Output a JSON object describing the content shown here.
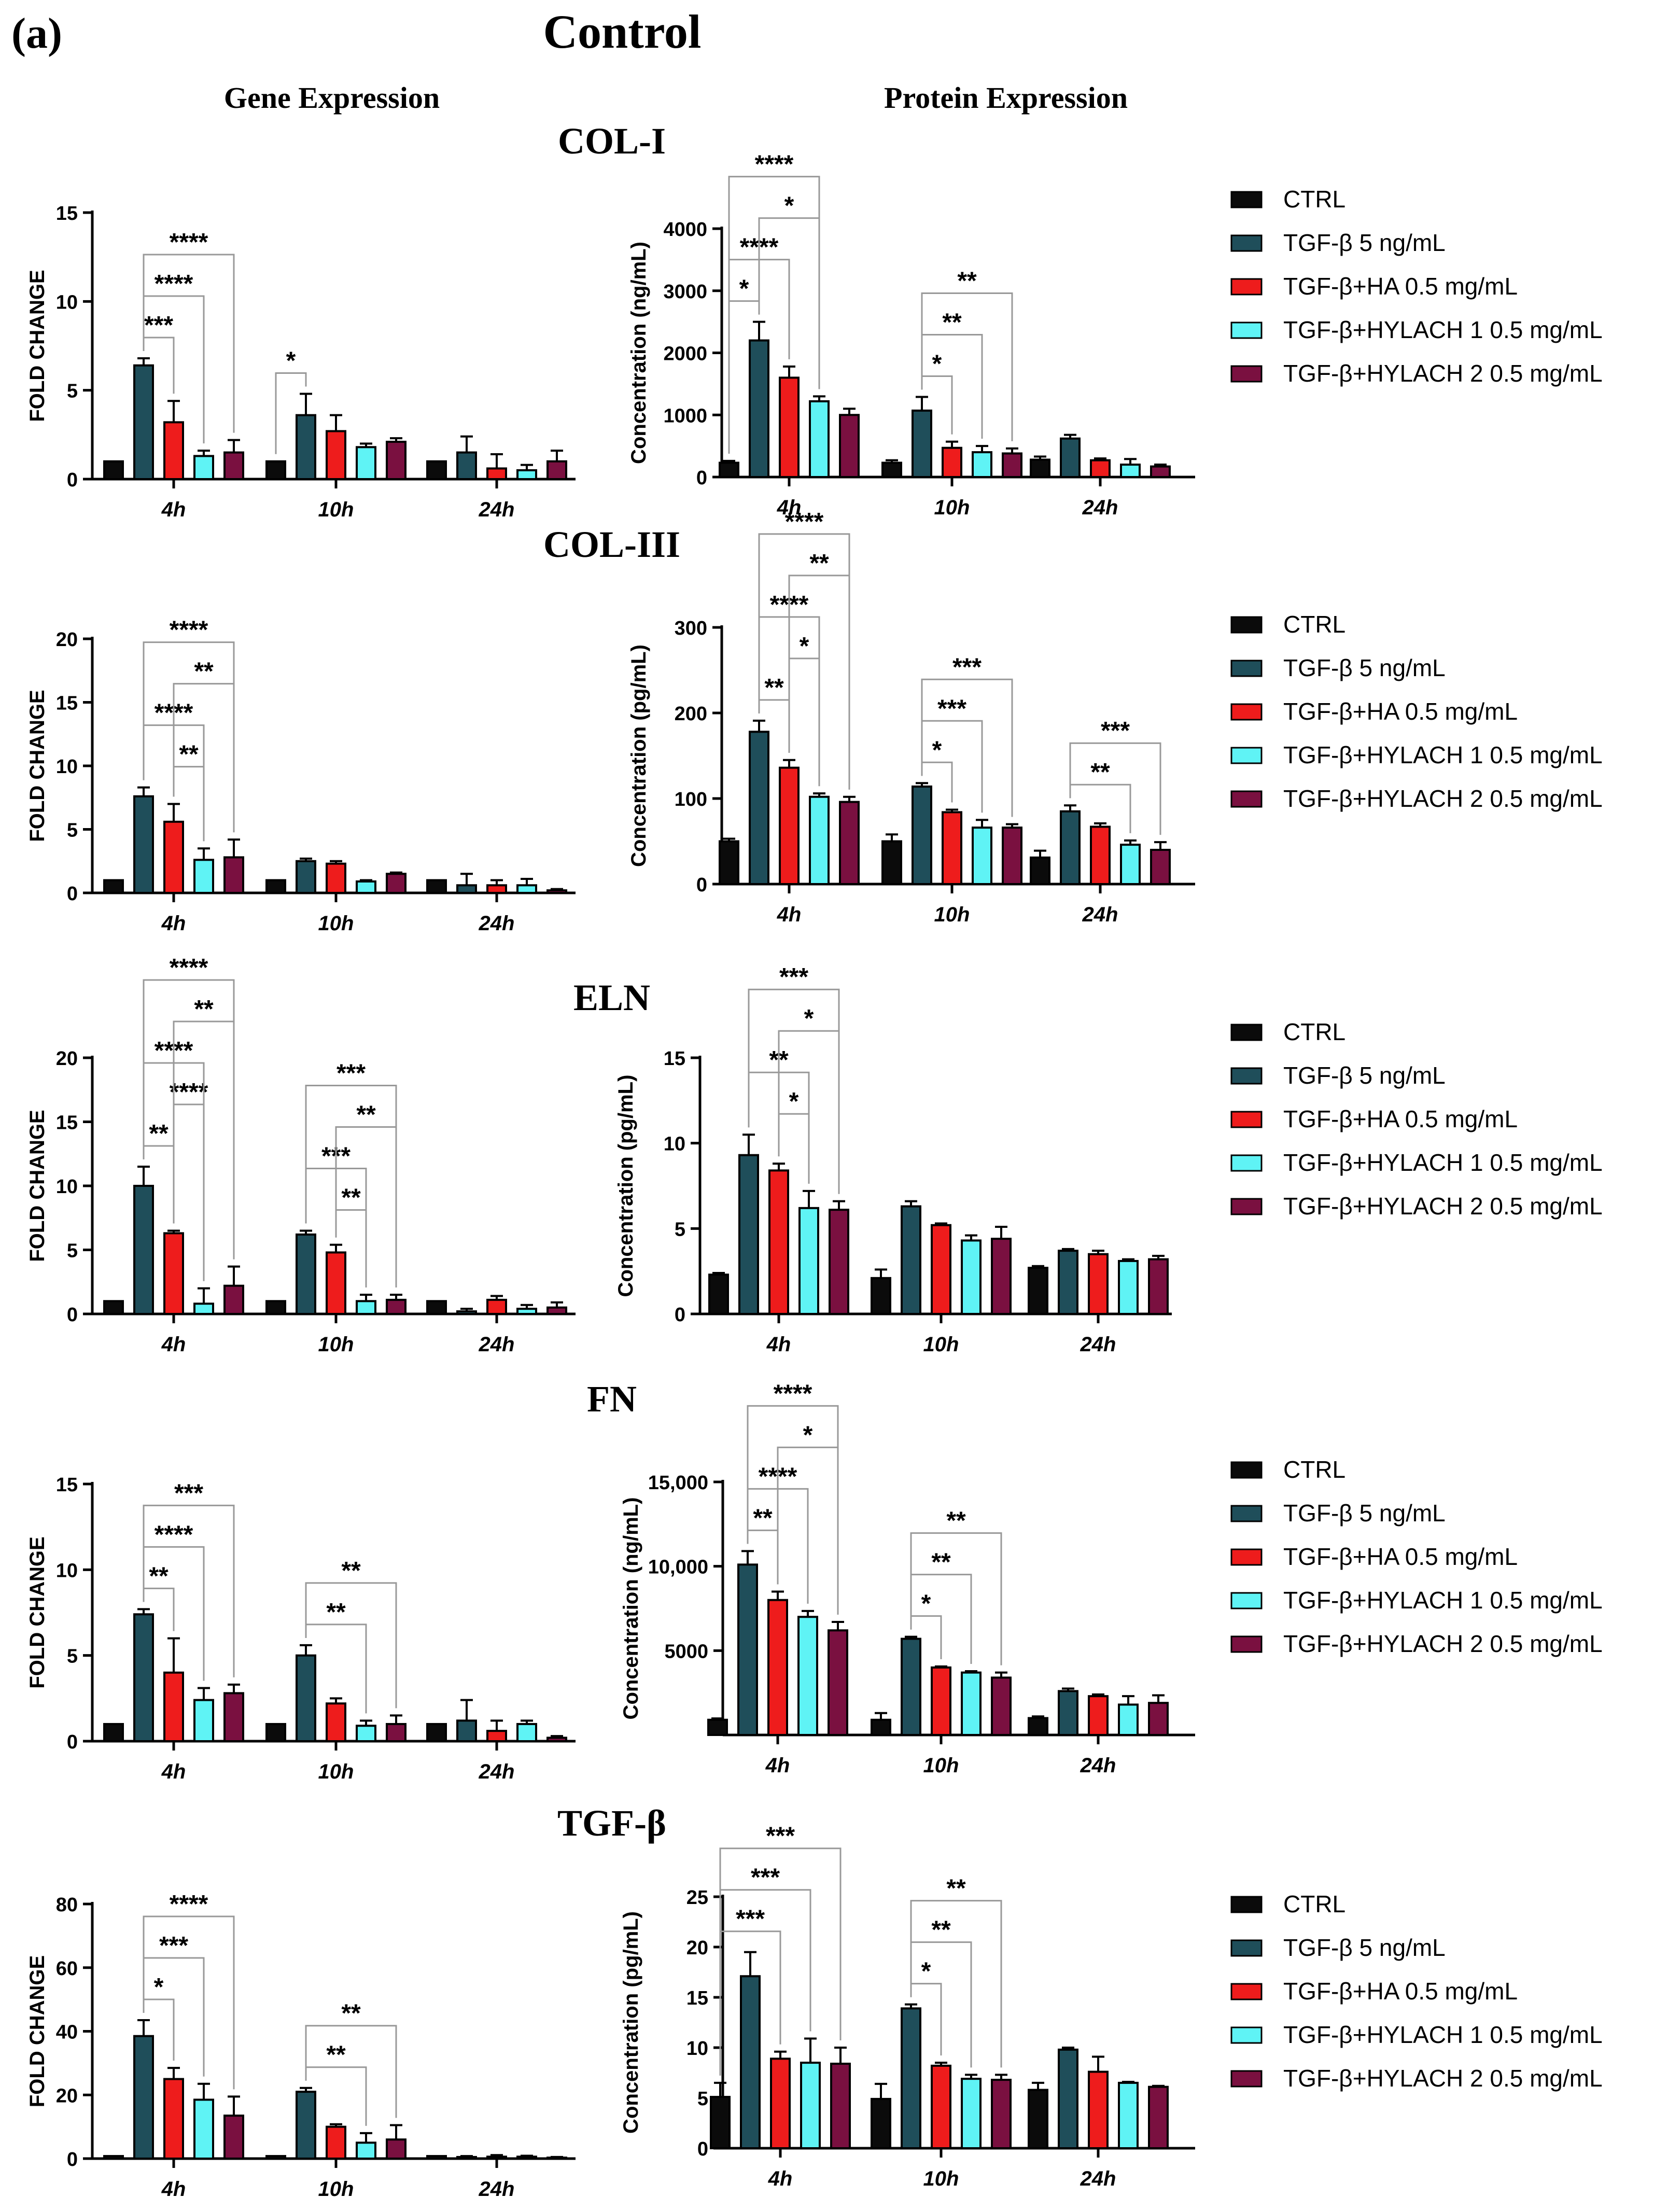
{
  "figure": {
    "panel_label": "(a)",
    "title": "Control",
    "column_gene": "Gene Expression",
    "column_protein": "Protein Expression"
  },
  "legend": [
    {
      "label": "CTRL",
      "color": "#0b0b0b"
    },
    {
      "label": "TGF-β 5 ng/mL",
      "color": "#1f4e5a"
    },
    {
      "label": "TGF-β+HA 0.5 mg/mL",
      "color": "#ee1c1c"
    },
    {
      "label": "TGF-β+HYLACH 1 0.5 mg/mL",
      "color": "#5ff3f5"
    },
    {
      "label": "TGF-β+HYLACH 2 0.5 mg/mL",
      "color": "#7a1040"
    }
  ],
  "chart_data": [
    {
      "id": "col1-gene",
      "section": "COL-I",
      "type": "bar",
      "ylabel": "FOLD CHANGE",
      "ylim": [
        0,
        15
      ],
      "yticks": [
        0,
        5,
        10,
        15
      ],
      "ytick_labels": [
        "0",
        "5",
        "10",
        "15"
      ],
      "categories": [
        "4h",
        "10h",
        "24h"
      ],
      "series_names": [
        "CTRL",
        "TGF-β 5 ng/mL",
        "TGF-β+HA 0.5 mg/mL",
        "TGF-β+HYLACH 1 0.5 mg/mL",
        "TGF-β+HYLACH 2 0.5 mg/mL"
      ],
      "values": [
        [
          1,
          6.4,
          3.2,
          1.3,
          1.5
        ],
        [
          1,
          3.6,
          2.7,
          1.8,
          2.1
        ],
        [
          1,
          1.5,
          0.6,
          0.5,
          1.0
        ]
      ],
      "errors": [
        [
          0,
          0.4,
          1.2,
          0.3,
          0.7
        ],
        [
          0,
          1.2,
          0.9,
          0.2,
          0.2
        ],
        [
          0,
          0.9,
          0.8,
          0.3,
          0.6
        ]
      ],
      "significance": [
        {
          "group": 0,
          "from": 1,
          "to": 4,
          "label": "****"
        },
        {
          "group": 0,
          "from": 1,
          "to": 3,
          "label": "****"
        },
        {
          "group": 0,
          "from": 1,
          "to": 2,
          "label": "***"
        },
        {
          "group": 1,
          "from": 0,
          "to": 1,
          "label": "*"
        }
      ]
    },
    {
      "id": "col1-protein",
      "section": "COL-I",
      "type": "bar",
      "ylabel": "Concentration (ng/mL)",
      "ylim": [
        0,
        4000
      ],
      "yticks": [
        0,
        1000,
        2000,
        3000,
        4000
      ],
      "ytick_labels": [
        "0",
        "1000",
        "2000",
        "3000",
        "4000"
      ],
      "categories": [
        "4h",
        "10h",
        "24h"
      ],
      "series_names": [
        "CTRL",
        "TGF-β 5 ng/mL",
        "TGF-β+HA 0.5 mg/mL",
        "TGF-β+HYLACH 1 0.5 mg/mL",
        "TGF-β+HYLACH 2 0.5 mg/mL"
      ],
      "values": [
        [
          230,
          2200,
          1600,
          1220,
          1000
        ],
        [
          230,
          1070,
          470,
          400,
          380
        ],
        [
          280,
          620,
          270,
          200,
          170
        ]
      ],
      "errors": [
        [
          30,
          300,
          180,
          80,
          100
        ],
        [
          40,
          220,
          100,
          100,
          80
        ],
        [
          50,
          60,
          30,
          90,
          30
        ]
      ],
      "significance": [
        {
          "group": 0,
          "from": 0,
          "to": 3,
          "label": "****"
        },
        {
          "group": 0,
          "from": 0,
          "to": 2,
          "label": "****"
        },
        {
          "group": 0,
          "from": 0,
          "to": 1,
          "label": "*"
        },
        {
          "group": 0,
          "from": 1,
          "to": 3,
          "label": "*"
        },
        {
          "group": 1,
          "from": 1,
          "to": 4,
          "label": "**"
        },
        {
          "group": 1,
          "from": 1,
          "to": 3,
          "label": "**"
        },
        {
          "group": 1,
          "from": 1,
          "to": 2,
          "label": "*"
        }
      ]
    },
    {
      "id": "col3-gene",
      "section": "COL-III",
      "type": "bar",
      "ylabel": "FOLD CHANGE",
      "ylim": [
        0,
        20
      ],
      "yticks": [
        0,
        5,
        10,
        15,
        20
      ],
      "ytick_labels": [
        "0",
        "5",
        "10",
        "15",
        "20"
      ],
      "categories": [
        "4h",
        "10h",
        "24h"
      ],
      "series_names": [
        "CTRL",
        "TGF-β 5 ng/mL",
        "TGF-β+HA 0.5 mg/mL",
        "TGF-β+HYLACH 1 0.5 mg/mL",
        "TGF-β+HYLACH 2 0.5 mg/mL"
      ],
      "values": [
        [
          1,
          7.6,
          5.6,
          2.6,
          2.8
        ],
        [
          1,
          2.5,
          2.3,
          0.9,
          1.5
        ],
        [
          1,
          0.6,
          0.6,
          0.6,
          0.2
        ]
      ],
      "errors": [
        [
          0,
          0.7,
          1.4,
          0.9,
          1.4
        ],
        [
          0,
          0.2,
          0.2,
          0.1,
          0.1
        ],
        [
          0,
          0.9,
          0.4,
          0.5,
          0.1
        ]
      ],
      "significance": [
        {
          "group": 0,
          "from": 1,
          "to": 4,
          "label": "****"
        },
        {
          "group": 0,
          "from": 1,
          "to": 3,
          "label": "****"
        },
        {
          "group": 0,
          "from": 2,
          "to": 4,
          "label": "**"
        },
        {
          "group": 0,
          "from": 2,
          "to": 3,
          "label": "**"
        }
      ]
    },
    {
      "id": "col3-protein",
      "section": "COL-III",
      "type": "bar",
      "ylabel": "Concentration (pg/mL)",
      "ylim": [
        0,
        300
      ],
      "yticks": [
        0,
        100,
        200,
        300
      ],
      "ytick_labels": [
        "0",
        "100",
        "200",
        "300"
      ],
      "categories": [
        "4h",
        "10h",
        "24h"
      ],
      "series_names": [
        "CTRL",
        "TGF-β 5 ng/mL",
        "TGF-β+HA 0.5 mg/mL",
        "TGF-β+HYLACH 1 0.5 mg/mL",
        "TGF-β+HYLACH 2 0.5 mg/mL"
      ],
      "values": [
        [
          50,
          178,
          136,
          102,
          96
        ],
        [
          50,
          114,
          84,
          66,
          66
        ],
        [
          31,
          85,
          67,
          46,
          40
        ]
      ],
      "errors": [
        [
          3,
          13,
          9,
          4,
          6
        ],
        [
          8,
          4,
          3,
          9,
          4
        ],
        [
          8,
          7,
          4,
          5,
          9
        ]
      ],
      "significance": [
        {
          "group": 0,
          "from": 1,
          "to": 4,
          "label": "****"
        },
        {
          "group": 0,
          "from": 1,
          "to": 3,
          "label": "****"
        },
        {
          "group": 0,
          "from": 1,
          "to": 2,
          "label": "**"
        },
        {
          "group": 0,
          "from": 2,
          "to": 4,
          "label": "**"
        },
        {
          "group": 0,
          "from": 2,
          "to": 3,
          "label": "*"
        },
        {
          "group": 1,
          "from": 1,
          "to": 4,
          "label": "***"
        },
        {
          "group": 1,
          "from": 1,
          "to": 3,
          "label": "***"
        },
        {
          "group": 1,
          "from": 1,
          "to": 2,
          "label": "*"
        },
        {
          "group": 2,
          "from": 1,
          "to": 4,
          "label": "***"
        },
        {
          "group": 2,
          "from": 1,
          "to": 3,
          "label": "**"
        }
      ]
    },
    {
      "id": "eln-gene",
      "section": "ELN",
      "type": "bar",
      "ylabel": "FOLD CHANGE",
      "ylim": [
        0,
        20
      ],
      "yticks": [
        0,
        5,
        10,
        15,
        20
      ],
      "ytick_labels": [
        "0",
        "5",
        "10",
        "15",
        "20"
      ],
      "categories": [
        "4h",
        "10h",
        "24h"
      ],
      "series_names": [
        "CTRL",
        "TGF-β 5 ng/mL",
        "TGF-β+HA 0.5 mg/mL",
        "TGF-β+HYLACH 1 0.5 mg/mL",
        "TGF-β+HYLACH 2 0.5 mg/mL"
      ],
      "values": [
        [
          1,
          10,
          6.3,
          0.8,
          2.2
        ],
        [
          1,
          6.2,
          4.8,
          1.0,
          1.1
        ],
        [
          1,
          0.2,
          1.1,
          0.4,
          0.5
        ]
      ],
      "errors": [
        [
          0,
          1.5,
          0.2,
          1.2,
          1.5
        ],
        [
          0,
          0.3,
          0.6,
          0.5,
          0.4
        ],
        [
          0,
          0.2,
          0.3,
          0.3,
          0.4
        ]
      ],
      "significance": [
        {
          "group": 0,
          "from": 1,
          "to": 4,
          "label": "****"
        },
        {
          "group": 0,
          "from": 1,
          "to": 3,
          "label": "****"
        },
        {
          "group": 0,
          "from": 1,
          "to": 2,
          "label": "**"
        },
        {
          "group": 0,
          "from": 2,
          "to": 4,
          "label": "**"
        },
        {
          "group": 0,
          "from": 2,
          "to": 3,
          "label": "****"
        },
        {
          "group": 1,
          "from": 1,
          "to": 4,
          "label": "***"
        },
        {
          "group": 1,
          "from": 1,
          "to": 3,
          "label": "***"
        },
        {
          "group": 1,
          "from": 2,
          "to": 4,
          "label": "**"
        },
        {
          "group": 1,
          "from": 2,
          "to": 3,
          "label": "**"
        }
      ]
    },
    {
      "id": "eln-protein",
      "section": "ELN",
      "type": "bar",
      "ylabel": "Concentration (pg/mL)",
      "ylim": [
        0,
        15
      ],
      "yticks": [
        0,
        5,
        10,
        15
      ],
      "ytick_labels": [
        "0",
        "5",
        "10",
        "15"
      ],
      "categories": [
        "4h",
        "10h",
        "24h"
      ],
      "series_names": [
        "CTRL",
        "TGF-β 5 ng/mL",
        "TGF-β+HA 0.5 mg/mL",
        "TGF-β+HYLACH 1 0.5 mg/mL",
        "TGF-β+HYLACH 2 0.5 mg/mL"
      ],
      "values": [
        [
          2.3,
          9.3,
          8.4,
          6.2,
          6.1
        ],
        [
          2.1,
          6.3,
          5.2,
          4.3,
          4.4
        ],
        [
          2.7,
          3.7,
          3.5,
          3.1,
          3.2
        ]
      ],
      "errors": [
        [
          0.1,
          1.2,
          0.4,
          1.0,
          0.5
        ],
        [
          0.5,
          0.3,
          0.1,
          0.3,
          0.7
        ],
        [
          0.1,
          0.1,
          0.2,
          0.1,
          0.2
        ]
      ],
      "significance": [
        {
          "group": 0,
          "from": 1,
          "to": 4,
          "label": "***"
        },
        {
          "group": 0,
          "from": 1,
          "to": 3,
          "label": "**"
        },
        {
          "group": 0,
          "from": 2,
          "to": 4,
          "label": "*"
        },
        {
          "group": 0,
          "from": 2,
          "to": 3,
          "label": "*"
        }
      ]
    },
    {
      "id": "fn-gene",
      "section": "FN",
      "type": "bar",
      "ylabel": "FOLD CHANGE",
      "ylim": [
        0,
        15
      ],
      "yticks": [
        0,
        5,
        10,
        15
      ],
      "ytick_labels": [
        "0",
        "5",
        "10",
        "15"
      ],
      "categories": [
        "4h",
        "10h",
        "24h"
      ],
      "series_names": [
        "CTRL",
        "TGF-β 5 ng/mL",
        "TGF-β+HA 0.5 mg/mL",
        "TGF-β+HYLACH 1 0.5 mg/mL",
        "TGF-β+HYLACH 2 0.5 mg/mL"
      ],
      "values": [
        [
          1,
          7.4,
          4.0,
          2.4,
          2.8
        ],
        [
          1,
          5.0,
          2.2,
          0.9,
          1.0
        ],
        [
          1,
          1.2,
          0.6,
          1.0,
          0.2
        ]
      ],
      "errors": [
        [
          0,
          0.3,
          2.0,
          0.7,
          0.5
        ],
        [
          0,
          0.6,
          0.3,
          0.3,
          0.5
        ],
        [
          0,
          1.2,
          0.6,
          0.2,
          0.1
        ]
      ],
      "significance": [
        {
          "group": 0,
          "from": 1,
          "to": 4,
          "label": "***"
        },
        {
          "group": 0,
          "from": 1,
          "to": 3,
          "label": "****"
        },
        {
          "group": 0,
          "from": 1,
          "to": 2,
          "label": "**"
        },
        {
          "group": 1,
          "from": 1,
          "to": 4,
          "label": "**"
        },
        {
          "group": 1,
          "from": 1,
          "to": 3,
          "label": "**"
        }
      ]
    },
    {
      "id": "fn-protein",
      "section": "FN",
      "type": "bar",
      "ylabel": "Concentration (ng/mL)",
      "ylim": [
        0,
        15000
      ],
      "yticks": [
        5000,
        10000,
        15000
      ],
      "ytick_labels": [
        "5000",
        "10,000",
        "15,000"
      ],
      "categories": [
        "4h",
        "10h",
        "24h"
      ],
      "series_names": [
        "CTRL",
        "TGF-β 5 ng/mL",
        "TGF-β+HA 0.5 mg/mL",
        "TGF-β+HYLACH 1 0.5 mg/mL",
        "TGF-β+HYLACH 2 0.5 mg/mL"
      ],
      "values": [
        [
          900,
          10100,
          8000,
          7000,
          6200
        ],
        [
          900,
          5700,
          4000,
          3700,
          3400
        ],
        [
          1000,
          2600,
          2300,
          1800,
          1900
        ]
      ],
      "errors": [
        [
          80,
          800,
          500,
          350,
          500
        ],
        [
          400,
          120,
          60,
          80,
          300
        ],
        [
          100,
          150,
          100,
          500,
          450
        ]
      ],
      "significance": [
        {
          "group": 0,
          "from": 1,
          "to": 4,
          "label": "****"
        },
        {
          "group": 0,
          "from": 1,
          "to": 3,
          "label": "****"
        },
        {
          "group": 0,
          "from": 1,
          "to": 2,
          "label": "**"
        },
        {
          "group": 0,
          "from": 2,
          "to": 4,
          "label": "*"
        },
        {
          "group": 1,
          "from": 1,
          "to": 4,
          "label": "**"
        },
        {
          "group": 1,
          "from": 1,
          "to": 3,
          "label": "**"
        },
        {
          "group": 1,
          "from": 1,
          "to": 2,
          "label": "*"
        }
      ]
    },
    {
      "id": "tgfb-gene",
      "section": "TGF-β",
      "type": "bar",
      "ylabel": "FOLD CHANGE",
      "ylim": [
        0,
        80
      ],
      "yticks": [
        0,
        20,
        40,
        60,
        80
      ],
      "ytick_labels": [
        "0",
        "20",
        "40",
        "60",
        "80"
      ],
      "categories": [
        "4h",
        "10h",
        "24h"
      ],
      "series_names": [
        "CTRL",
        "TGF-β 5 ng/mL",
        "TGF-β+HA 0.5 mg/mL",
        "TGF-β+HYLACH 1 0.5 mg/mL",
        "TGF-β+HYLACH 2 0.5 mg/mL"
      ],
      "values": [
        [
          0.8,
          38.5,
          25,
          18.5,
          13.5
        ],
        [
          0.8,
          21,
          10,
          5,
          6
        ],
        [
          0.8,
          0.5,
          0.6,
          0.6,
          0.3
        ]
      ],
      "errors": [
        [
          0,
          5,
          3.5,
          5,
          6
        ],
        [
          0,
          1.2,
          0.8,
          3,
          4.5
        ],
        [
          0,
          0.3,
          0.5,
          0.3,
          0.2
        ]
      ],
      "significance": [
        {
          "group": 0,
          "from": 1,
          "to": 4,
          "label": "****"
        },
        {
          "group": 0,
          "from": 1,
          "to": 3,
          "label": "***"
        },
        {
          "group": 0,
          "from": 1,
          "to": 2,
          "label": "*"
        },
        {
          "group": 1,
          "from": 1,
          "to": 4,
          "label": "**"
        },
        {
          "group": 1,
          "from": 1,
          "to": 3,
          "label": "**"
        }
      ]
    },
    {
      "id": "tgfb-protein",
      "section": "TGF-β",
      "type": "bar",
      "ylabel": "Concentration (pg/mL)",
      "ylim": [
        0,
        25
      ],
      "yticks": [
        0,
        5,
        10,
        15,
        20,
        25
      ],
      "ytick_labels": [
        "0",
        "5",
        "10",
        "15",
        "20",
        "25"
      ],
      "categories": [
        "4h",
        "10h",
        "24h"
      ],
      "series_names": [
        "CTRL",
        "TGF-β 5 ng/mL",
        "TGF-β+HA 0.5 mg/mL",
        "TGF-β+HYLACH 1 0.5 mg/mL",
        "TGF-β+HYLACH 2 0.5 mg/mL"
      ],
      "values": [
        [
          5.1,
          17.1,
          8.9,
          8.5,
          8.4
        ],
        [
          4.9,
          13.9,
          8.2,
          6.9,
          6.8
        ],
        [
          5.8,
          9.8,
          7.6,
          6.5,
          6.1
        ]
      ],
      "errors": [
        [
          1.4,
          2.4,
          0.7,
          2.4,
          1.6
        ],
        [
          1.5,
          0.4,
          0.3,
          0.4,
          0.5
        ],
        [
          0.7,
          0.2,
          1.5,
          0.1,
          0.1
        ]
      ],
      "significance": [
        {
          "group": 0,
          "from": 0,
          "to": 4,
          "label": "***"
        },
        {
          "group": 0,
          "from": 0,
          "to": 3,
          "label": "***"
        },
        {
          "group": 0,
          "from": 0,
          "to": 2,
          "label": "***"
        },
        {
          "group": 1,
          "from": 1,
          "to": 4,
          "label": "**"
        },
        {
          "group": 1,
          "from": 1,
          "to": 3,
          "label": "**"
        },
        {
          "group": 1,
          "from": 1,
          "to": 2,
          "label": "*"
        }
      ]
    }
  ]
}
